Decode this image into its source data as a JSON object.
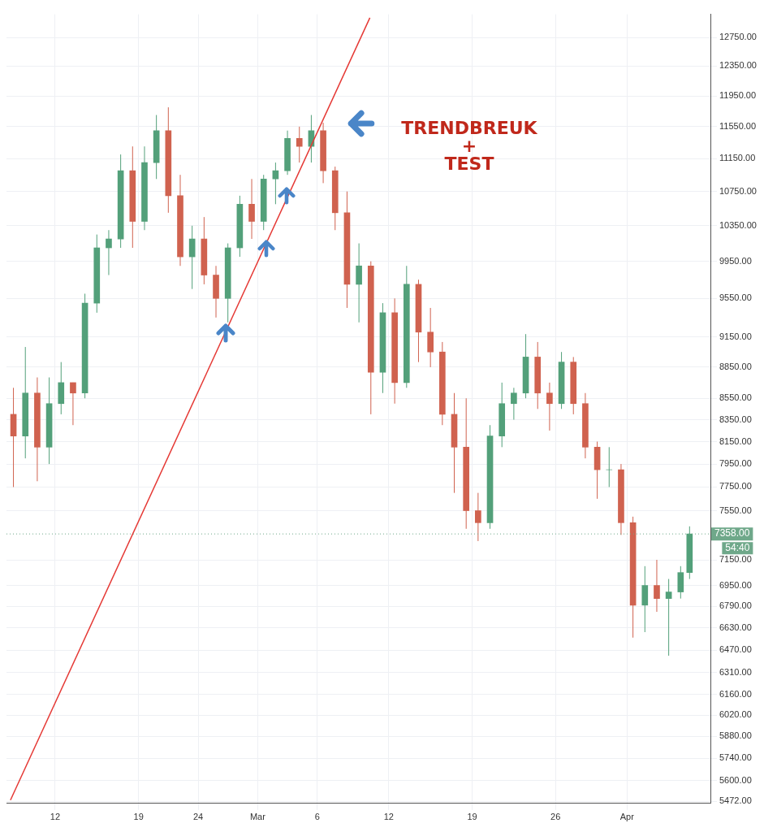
{
  "chart_data": {
    "type": "candlestick",
    "x": [
      "--02-08T12:00",
      "--02-09T12:00",
      "--02-10T12:00",
      "--02-11T12:00",
      "--02-12T12:00",
      "--02-13T12:00",
      "--02-14T12:00",
      "--02-15T12:00",
      "--02-16T12:00",
      "--02-17T12:00",
      "--02-18T12:00",
      "--02-19T12:00",
      "--02-20T12:00",
      "--02-21T12:00",
      "--02-22T12:00",
      "--02-23T12:00",
      "--02-24T12:00",
      "--02-25T12:00",
      "--02-26T12:00",
      "--02-27T12:00",
      "--02-28T12:00",
      "--03-01T12:00",
      "--03-02T12:00",
      "--03-03T12:00",
      "--03-04T12:00",
      "--03-05T12:00",
      "--03-06T12:00",
      "--03-07T12:00",
      "--03-08T12:00",
      "--03-09T12:00",
      "--03-10T12:00",
      "--03-11T12:00",
      "--03-12T12:00",
      "--03-13T12:00",
      "--03-14T12:00",
      "--03-15T12:00",
      "--03-16T12:00",
      "--03-17T12:00",
      "--03-18T12:00",
      "--03-19T12:00",
      "--03-20T12:00",
      "--03-21T12:00",
      "--03-22T12:00",
      "--03-23T12:00",
      "--03-24T12:00",
      "--03-25T12:00",
      "--03-26T12:00",
      "--03-27T12:00",
      "--03-28T12:00",
      "--03-29T12:00",
      "--03-30T12:00",
      "--03-31T12:00",
      "--04-01T12:00",
      "--04-02T12:00",
      "--04-03T12:00",
      "--04-04T12:00",
      "--04-05T12:00",
      "--04-06T06:00"
    ],
    "ohlc": [
      [
        8400,
        8650,
        7750,
        8200
      ],
      [
        8200,
        9050,
        8000,
        8600
      ],
      [
        8600,
        8750,
        7800,
        8100
      ],
      [
        8100,
        8750,
        7950,
        8500
      ],
      [
        8500,
        8900,
        8400,
        8700
      ],
      [
        8700,
        8700,
        8300,
        8600
      ],
      [
        8600,
        9600,
        8550,
        9500
      ],
      [
        9500,
        10250,
        9400,
        10100
      ],
      [
        10100,
        10300,
        9800,
        10200
      ],
      [
        10200,
        11200,
        10100,
        11000
      ],
      [
        11000,
        11300,
        10100,
        10400
      ],
      [
        10400,
        11300,
        10300,
        11100
      ],
      [
        11100,
        11700,
        10900,
        11500
      ],
      [
        11500,
        11800,
        10500,
        10700
      ],
      [
        10700,
        10950,
        9900,
        10000
      ],
      [
        10000,
        10350,
        9650,
        10200
      ],
      [
        10200,
        10450,
        9700,
        9800
      ],
      [
        9800,
        9900,
        9350,
        9550
      ],
      [
        9550,
        10150,
        9300,
        10100
      ],
      [
        10100,
        10700,
        10000,
        10600
      ],
      [
        10600,
        10900,
        10200,
        10400
      ],
      [
        10400,
        10950,
        10300,
        10900
      ],
      [
        10900,
        11100,
        10600,
        11000
      ],
      [
        11000,
        11500,
        10950,
        11400
      ],
      [
        11400,
        11550,
        11100,
        11300
      ],
      [
        11300,
        11700,
        11100,
        11500
      ],
      [
        11500,
        11600,
        10850,
        11000
      ],
      [
        11000,
        11050,
        10300,
        10500
      ],
      [
        10500,
        10750,
        9450,
        9700
      ],
      [
        9700,
        10150,
        9300,
        9900
      ],
      [
        9900,
        9950,
        8400,
        8800
      ],
      [
        8800,
        9500,
        8600,
        9400
      ],
      [
        9400,
        9550,
        8500,
        8700
      ],
      [
        8700,
        9900,
        8650,
        9700
      ],
      [
        9700,
        9750,
        8900,
        9200
      ],
      [
        9200,
        9450,
        8850,
        9000
      ],
      [
        9000,
        9100,
        8300,
        8400
      ],
      [
        8400,
        8600,
        7700,
        8100
      ],
      [
        8100,
        8550,
        7400,
        7550
      ],
      [
        7550,
        7700,
        7300,
        7450
      ],
      [
        7450,
        8300,
        7400,
        8200
      ],
      [
        8200,
        8700,
        8100,
        8500
      ],
      [
        8500,
        8650,
        8350,
        8600
      ],
      [
        8600,
        9180,
        8550,
        8950
      ],
      [
        8950,
        9100,
        8450,
        8600
      ],
      [
        8600,
        8700,
        8250,
        8500
      ],
      [
        8500,
        9000,
        8450,
        8900
      ],
      [
        8900,
        8950,
        8400,
        8500
      ],
      [
        8500,
        8600,
        8000,
        8100
      ],
      [
        8100,
        8150,
        7650,
        7900
      ],
      [
        7900,
        8100,
        7750,
        7900
      ],
      [
        7900,
        7950,
        7350,
        7450
      ],
      [
        7450,
        7500,
        6560,
        6800
      ],
      [
        6800,
        7100,
        6600,
        6950
      ],
      [
        6950,
        7150,
        6750,
        6850
      ],
      [
        6850,
        7000,
        6430,
        6900
      ],
      [
        6900,
        7100,
        6850,
        7050
      ],
      [
        7050,
        7420,
        7000,
        7358
      ]
    ],
    "series": [
      {
        "type": "line",
        "color": "#e53935",
        "x": [
          "--02-08T06:00",
          "--03-10T10:00"
        ],
        "values": [
          5480,
          13030
        ]
      }
    ],
    "xlim": [
      "--02-07T22:00",
      "--04-08T00:00"
    ],
    "xticks": [
      {
        "value": "--02-12",
        "label": "12"
      },
      {
        "value": "--02-19",
        "label": "19"
      },
      {
        "value": "--02-24",
        "label": "24"
      },
      {
        "value": "--03-01",
        "label": "Mar"
      },
      {
        "value": "--03-06",
        "label": "6"
      },
      {
        "value": "--03-12",
        "label": "12"
      },
      {
        "value": "--03-19",
        "label": "19"
      },
      {
        "value": "--03-26",
        "label": "26"
      },
      {
        "value": "--04-01",
        "label": "Apr"
      }
    ],
    "ylim": [
      5460,
      13080
    ],
    "yticks": [
      {
        "value": 12750,
        "label": "12750.00"
      },
      {
        "value": 12350,
        "label": "12350.00"
      },
      {
        "value": 11950,
        "label": "11950.00"
      },
      {
        "value": 11550,
        "label": "11550.00"
      },
      {
        "value": 11150,
        "label": "11150.00"
      },
      {
        "value": 10750,
        "label": "10750.00"
      },
      {
        "value": 10350,
        "label": "10350.00"
      },
      {
        "value": 9950,
        "label": "9950.00"
      },
      {
        "value": 9550,
        "label": "9550.00"
      },
      {
        "value": 9150,
        "label": "9150.00"
      },
      {
        "value": 8850,
        "label": "8850.00"
      },
      {
        "value": 8550,
        "label": "8550.00"
      },
      {
        "value": 8350,
        "label": "8350.00"
      },
      {
        "value": 8150,
        "label": "8150.00"
      },
      {
        "value": 7950,
        "label": "7950.00"
      },
      {
        "value": 7750,
        "label": "7750.00"
      },
      {
        "value": 7550,
        "label": "7550.00"
      },
      {
        "value": 7150,
        "label": "7150.00"
      },
      {
        "value": 6950,
        "label": "6950.00"
      },
      {
        "value": 6790,
        "label": "6790.00"
      },
      {
        "value": 6630,
        "label": "6630.00"
      },
      {
        "value": 6470,
        "label": "6470.00"
      },
      {
        "value": 6310,
        "label": "6310.00"
      },
      {
        "value": 6160,
        "label": "6160.00"
      },
      {
        "value": 6020,
        "label": "6020.00"
      },
      {
        "value": 5880,
        "label": "5880.00"
      },
      {
        "value": 5740,
        "label": "5740.00"
      },
      {
        "value": 5600,
        "label": "5600.00"
      },
      {
        "value": 5472,
        "label": "5472.00"
      }
    ],
    "log": true,
    "grid": true,
    "ref_lines": [
      {
        "axis": "y",
        "value": 7358,
        "label": "7358.00",
        "color": "#6fa88a",
        "line_style": "dotted"
      }
    ],
    "annotations": [
      "TRENDBREUK\n+\nTEST",
      "54:40"
    ]
  }
}
